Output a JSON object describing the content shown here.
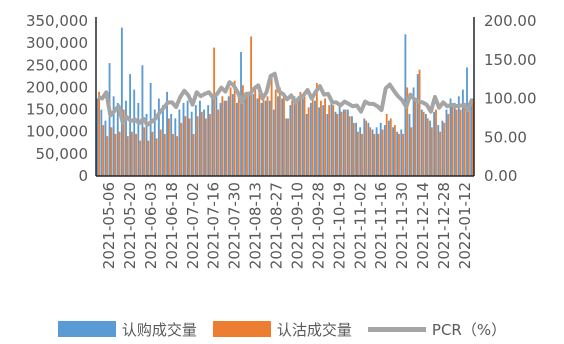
{
  "chart_data": {
    "type": "bar",
    "title": "",
    "xlabel": "",
    "ylabel": "",
    "y_left": {
      "lim": [
        0,
        350000
      ],
      "ticks": [
        "0",
        "50,000",
        "100,000",
        "150,000",
        "200,000",
        "250,000",
        "300,000",
        "350,000"
      ]
    },
    "y_right": {
      "lim": [
        0,
        200
      ],
      "ticks": [
        "0.00",
        "50.00",
        "100.00",
        "150.00",
        "200.00"
      ]
    },
    "x_ticks": [
      "2021-05-06",
      "2021-05-20",
      "2021-06-03",
      "2021-06-18",
      "2021-07-02",
      "2021-07-16",
      "2021-07-30",
      "2021-08-13",
      "2021-08-27",
      "2021-09-10",
      "2021-09-28",
      "2021-10-19",
      "2021-11-02",
      "2021-11-16",
      "2021-11-30",
      "2021-12-14",
      "2021-12-28",
      "2022-01-12"
    ],
    "grid": false,
    "legend_position": "bottom",
    "colors": {
      "call": "#5b9bd5",
      "put": "#ed7d31",
      "pcr": "#a5a5a5",
      "axis": "#262626"
    },
    "series": [
      {
        "name": "认购成交量",
        "axis": "left",
        "type": "bar",
        "values": [
          175000,
          150000,
          125000,
          255000,
          180000,
          165000,
          335000,
          170000,
          230000,
          195000,
          165000,
          250000,
          140000,
          210000,
          150000,
          175000,
          160000,
          190000,
          140000,
          130000,
          150000,
          165000,
          170000,
          145000,
          160000,
          170000,
          150000,
          160000,
          175000,
          180000,
          165000,
          170000,
          180000,
          185000,
          165000,
          280000,
          175000,
          190000,
          185000,
          175000,
          165000,
          170000,
          170000,
          150000,
          180000,
          175000,
          130000,
          160000,
          180000,
          170000,
          175000,
          140000,
          165000,
          170000,
          155000,
          160000,
          140000,
          165000,
          145000,
          160000,
          150000,
          150000,
          135000,
          120000,
          110000,
          130000,
          120000,
          105000,
          110000,
          120000,
          115000,
          125000,
          110000,
          100000,
          105000,
          320000,
          140000,
          200000,
          230000,
          150000,
          140000,
          125000,
          145000,
          115000,
          125000,
          150000,
          175000,
          165000,
          180000,
          195000,
          245000,
          175000
        ]
      },
      {
        "name": "认沽成交量",
        "axis": "left",
        "type": "bar",
        "values": [
          190000,
          115000,
          90000,
          110000,
          95000,
          100000,
          150000,
          90000,
          100000,
          95000,
          80000,
          110000,
          80000,
          100000,
          85000,
          105000,
          95000,
          130000,
          95000,
          90000,
          120000,
          135000,
          130000,
          95000,
          135000,
          145000,
          130000,
          140000,
          290000,
          150000,
          180000,
          170000,
          200000,
          215000,
          180000,
          205000,
          190000,
          315000,
          200000,
          190000,
          185000,
          180000,
          230000,
          195000,
          200000,
          180000,
          130000,
          170000,
          175000,
          190000,
          180000,
          155000,
          180000,
          210000,
          170000,
          175000,
          160000,
          160000,
          140000,
          145000,
          150000,
          135000,
          120000,
          100000,
          95000,
          125000,
          110000,
          95000,
          95000,
          105000,
          140000,
          130000,
          115000,
          95000,
          95000,
          200000,
          110000,
          170000,
          240000,
          145000,
          130000,
          110000,
          150000,
          100000,
          120000,
          140000,
          165000,
          150000,
          150000,
          165000,
          165000,
          175000
        ]
      },
      {
        "name": "PCR（%）",
        "axis": "right",
        "type": "line",
        "values": [
          102,
          100,
          108,
          78,
          84,
          90,
          69,
          76,
          71,
          73,
          68,
          74,
          66,
          70,
          74,
          82,
          88,
          95,
          95,
          89,
          102,
          110,
          104,
          92,
          108,
          103,
          106,
          108,
          101,
          106,
          114,
          109,
          121,
          117,
          108,
          95,
          106,
          106,
          113,
          117,
          100,
          108,
          129,
          132,
          109,
          106,
          99,
          104,
          95,
          101,
          104,
          111,
          100,
          109,
          116,
          105,
          106,
          95,
          95,
          91,
          96,
          93,
          90,
          91,
          83,
          96,
          93,
          93,
          90,
          85,
          113,
          118,
          110,
          103,
          98,
          89,
          105,
          99,
          96,
          95,
          92,
          83,
          102,
          88,
          95,
          90,
          92,
          90,
          91,
          91,
          85,
          99
        ]
      }
    ]
  },
  "legend": {
    "call_label": "认购成交量",
    "put_label": "认沽成交量",
    "pcr_label": "PCR（%）"
  }
}
